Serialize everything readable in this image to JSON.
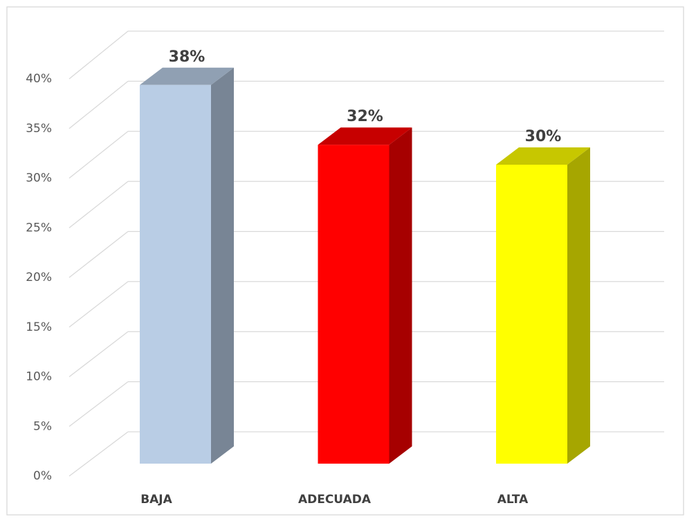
{
  "chart_data": {
    "type": "bar3d",
    "categories": [
      "BAJA",
      "ADECUADA",
      "ALTA"
    ],
    "values": [
      38,
      32,
      30
    ],
    "value_labels": [
      "38%",
      "32%",
      "30%"
    ],
    "colors": [
      "#b9cde5",
      "#ff0000",
      "#ffff00"
    ],
    "ylim": [
      0,
      40
    ],
    "yticks": [
      {
        "value": 0,
        "label": "0%"
      },
      {
        "value": 5,
        "label": "5%"
      },
      {
        "value": 10,
        "label": "10%"
      },
      {
        "value": 15,
        "label": "15%"
      },
      {
        "value": 20,
        "label": "20%"
      },
      {
        "value": 25,
        "label": "25%"
      },
      {
        "value": 30,
        "label": "30%"
      },
      {
        "value": 35,
        "label": "35%"
      },
      {
        "value": 40,
        "label": "40%"
      }
    ],
    "grid": true
  }
}
